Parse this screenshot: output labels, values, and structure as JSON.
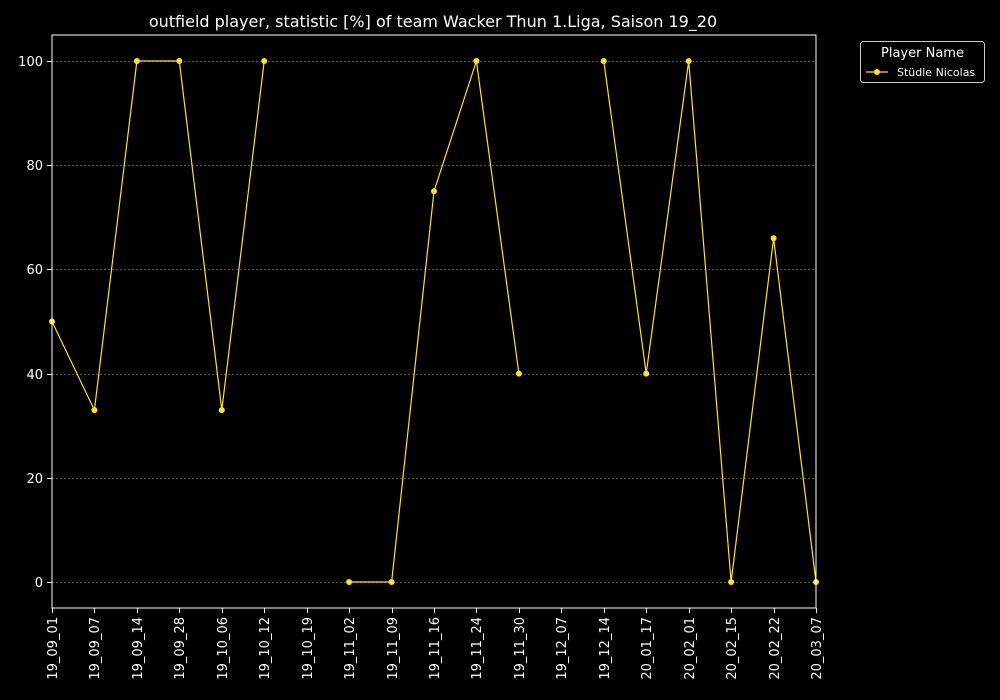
{
  "colors": {
    "background": "#000000",
    "axis": "#ffffff",
    "grid": "#9a9a9a",
    "series": "#ffe033"
  },
  "chart_data": {
    "type": "line",
    "title": "outfield player, statistic [%] of team Wacker Thun 1.Liga, Saison 19_20",
    "xlabel": "",
    "ylabel": "",
    "ylim": [
      -5,
      105
    ],
    "yticks": [
      0,
      20,
      40,
      60,
      80,
      100
    ],
    "grid": true,
    "legend_placement": "outside-top-right",
    "legend_title": "Player Name",
    "categories": [
      "19_09_01",
      "19_09_07",
      "19_09_14",
      "19_09_28",
      "19_10_06",
      "19_10_12",
      "19_10_19",
      "19_11_02",
      "19_11_09",
      "19_11_16",
      "19_11_24",
      "19_11_30",
      "19_12_07",
      "19_12_14",
      "20_01_17",
      "20_02_01",
      "20_02_15",
      "20_02_22",
      "20_03_07"
    ],
    "series": [
      {
        "name": "Stüdle Nicolas",
        "values": [
          50,
          33,
          100,
          100,
          33,
          100,
          null,
          0,
          0,
          75,
          100,
          40,
          null,
          100,
          40,
          100,
          0,
          66,
          0
        ]
      }
    ]
  }
}
